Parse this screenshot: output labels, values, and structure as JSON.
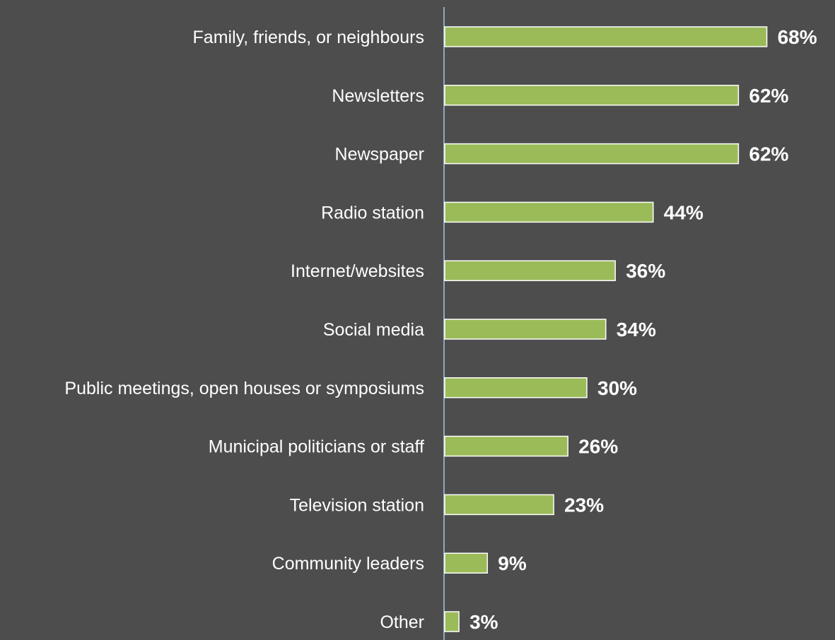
{
  "chart_data": {
    "type": "bar",
    "orientation": "horizontal",
    "title": "",
    "xlabel": "",
    "ylabel": "",
    "categories": [
      "Family, friends, or neighbours",
      "Newsletters",
      "Newspaper",
      "Radio station",
      "Internet/websites",
      "Social media",
      "Public meetings, open houses or symposiums",
      "Municipal politicians or staff",
      "Television station",
      "Community leaders",
      "Other"
    ],
    "values": [
      68,
      62,
      62,
      44,
      36,
      34,
      30,
      26,
      23,
      9,
      3
    ],
    "value_labels": [
      "68%",
      "62%",
      "62%",
      "44%",
      "36%",
      "34%",
      "30%",
      "26%",
      "23%",
      "9%",
      "3%"
    ],
    "unit": "%",
    "xlim": [
      0,
      100
    ],
    "grid": false,
    "legend": "none",
    "colors": {
      "background": "#4d4d4d",
      "bar_fill": "#9bbb59",
      "bar_stroke": "#ffffff",
      "axis": "#a6c8e6",
      "text": "#ffffff"
    }
  }
}
